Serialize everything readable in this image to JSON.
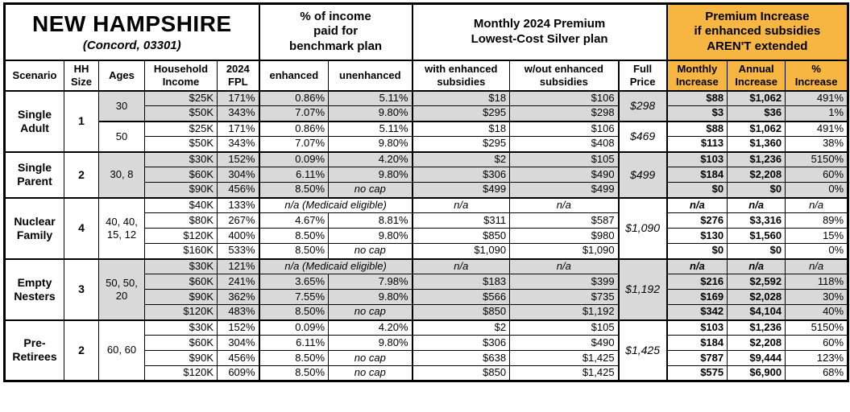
{
  "title": {
    "state": "NEW HAMPSHIRE",
    "subtitle": "(Concord, 03301)"
  },
  "group_headers": {
    "income_pct": "% of income\npaid for\nbenchmark plan",
    "premium": "Monthly 2024 Premium\nLowest-Cost Silver plan",
    "increase": "Premium Increase\nif enhanced subsidies\nAREN'T extended"
  },
  "columns": [
    "Scenario",
    "HH\nSize",
    "Ages",
    "Household\nIncome",
    "2024\nFPL",
    "enhanced",
    "unenhanced",
    "with enhanced\nsubsidies",
    "w/out enhanced\nsubsidies",
    "Full\nPrice",
    "Monthly\nIncrease",
    "Annual\nIncrease",
    "%\nIncrease"
  ],
  "colors": {
    "header_orange": "#F7B541",
    "row_shade": "#D9D9D9",
    "border": "#000000"
  },
  "groups": [
    {
      "scenario": "Single Adult",
      "hh_size": "1",
      "blocks": [
        {
          "ages": "30",
          "shaded": true,
          "full_price": "$298",
          "rows": [
            {
              "income": "$25K",
              "fpl": "171%",
              "enhanced": "0.86%",
              "unenhanced": "5.11%",
              "with_sub": "$18",
              "wout_sub": "$106",
              "monthly": "$88",
              "annual": "$1,062",
              "pct": "491%"
            },
            {
              "income": "$50K",
              "fpl": "343%",
              "enhanced": "7.07%",
              "unenhanced": "9.80%",
              "with_sub": "$295",
              "wout_sub": "$298",
              "monthly": "$3",
              "annual": "$36",
              "pct": "1%"
            }
          ]
        },
        {
          "ages": "50",
          "shaded": false,
          "full_price": "$469",
          "rows": [
            {
              "income": "$25K",
              "fpl": "171%",
              "enhanced": "0.86%",
              "unenhanced": "5.11%",
              "with_sub": "$18",
              "wout_sub": "$106",
              "monthly": "$88",
              "annual": "$1,062",
              "pct": "491%"
            },
            {
              "income": "$50K",
              "fpl": "343%",
              "enhanced": "7.07%",
              "unenhanced": "9.80%",
              "with_sub": "$295",
              "wout_sub": "$408",
              "monthly": "$113",
              "annual": "$1,360",
              "pct": "38%"
            }
          ]
        }
      ]
    },
    {
      "scenario": "Single Parent",
      "hh_size": "2",
      "blocks": [
        {
          "ages": "30, 8",
          "shaded": true,
          "full_price": "$499",
          "rows": [
            {
              "income": "$30K",
              "fpl": "152%",
              "enhanced": "0.09%",
              "unenhanced": "4.20%",
              "with_sub": "$2",
              "wout_sub": "$105",
              "monthly": "$103",
              "annual": "$1,236",
              "pct": "5150%"
            },
            {
              "income": "$60K",
              "fpl": "304%",
              "enhanced": "6.11%",
              "unenhanced": "9.80%",
              "with_sub": "$306",
              "wout_sub": "$490",
              "monthly": "$184",
              "annual": "$2,208",
              "pct": "60%"
            },
            {
              "income": "$90K",
              "fpl": "456%",
              "enhanced": "8.50%",
              "unenhanced": "no cap",
              "with_sub": "$499",
              "wout_sub": "$499",
              "monthly": "$0",
              "annual": "$0",
              "pct": "0%"
            }
          ]
        }
      ]
    },
    {
      "scenario": "Nuclear Family",
      "hh_size": "4",
      "blocks": [
        {
          "ages": "40, 40,\n15, 12",
          "shaded": false,
          "full_price": "$1,090",
          "rows": [
            {
              "income": "$40K",
              "fpl": "133%",
              "medicaid": "n/a (Medicaid eligible)",
              "with_sub": "n/a",
              "wout_sub": "n/a",
              "monthly": "n/a",
              "annual": "n/a",
              "pct": "n/a"
            },
            {
              "income": "$80K",
              "fpl": "267%",
              "enhanced": "4.67%",
              "unenhanced": "8.81%",
              "with_sub": "$311",
              "wout_sub": "$587",
              "monthly": "$276",
              "annual": "$3,316",
              "pct": "89%"
            },
            {
              "income": "$120K",
              "fpl": "400%",
              "enhanced": "8.50%",
              "unenhanced": "9.80%",
              "with_sub": "$850",
              "wout_sub": "$980",
              "monthly": "$130",
              "annual": "$1,560",
              "pct": "15%"
            },
            {
              "income": "$160K",
              "fpl": "533%",
              "enhanced": "8.50%",
              "unenhanced": "no cap",
              "with_sub": "$1,090",
              "wout_sub": "$1,090",
              "monthly": "$0",
              "annual": "$0",
              "pct": "0%"
            }
          ]
        }
      ]
    },
    {
      "scenario": "Empty Nesters",
      "hh_size": "3",
      "blocks": [
        {
          "ages": "50, 50,\n20",
          "shaded": true,
          "full_price": "$1,192",
          "rows": [
            {
              "income": "$30K",
              "fpl": "121%",
              "medicaid": "n/a (Medicaid eligible)",
              "with_sub": "n/a",
              "wout_sub": "n/a",
              "monthly": "n/a",
              "annual": "n/a",
              "pct": "n/a"
            },
            {
              "income": "$60K",
              "fpl": "241%",
              "enhanced": "3.65%",
              "unenhanced": "7.98%",
              "with_sub": "$183",
              "wout_sub": "$399",
              "monthly": "$216",
              "annual": "$2,592",
              "pct": "118%"
            },
            {
              "income": "$90K",
              "fpl": "362%",
              "enhanced": "7.55%",
              "unenhanced": "9.80%",
              "with_sub": "$566",
              "wout_sub": "$735",
              "monthly": "$169",
              "annual": "$2,028",
              "pct": "30%"
            },
            {
              "income": "$120K",
              "fpl": "483%",
              "enhanced": "8.50%",
              "unenhanced": "no cap",
              "with_sub": "$850",
              "wout_sub": "$1,192",
              "monthly": "$342",
              "annual": "$4,104",
              "pct": "40%"
            }
          ]
        }
      ]
    },
    {
      "scenario": "Pre-Retirees",
      "hh_size": "2",
      "blocks": [
        {
          "ages": "60, 60",
          "shaded": false,
          "full_price": "$1,425",
          "rows": [
            {
              "income": "$30K",
              "fpl": "152%",
              "enhanced": "0.09%",
              "unenhanced": "4.20%",
              "with_sub": "$2",
              "wout_sub": "$105",
              "monthly": "$103",
              "annual": "$1,236",
              "pct": "5150%"
            },
            {
              "income": "$60K",
              "fpl": "304%",
              "enhanced": "6.11%",
              "unenhanced": "9.80%",
              "with_sub": "$306",
              "wout_sub": "$490",
              "monthly": "$184",
              "annual": "$2,208",
              "pct": "60%"
            },
            {
              "income": "$90K",
              "fpl": "456%",
              "enhanced": "8.50%",
              "unenhanced": "no cap",
              "with_sub": "$638",
              "wout_sub": "$1,425",
              "monthly": "$787",
              "annual": "$9,444",
              "pct": "123%"
            },
            {
              "income": "$120K",
              "fpl": "609%",
              "enhanced": "8.50%",
              "unenhanced": "no cap",
              "with_sub": "$850",
              "wout_sub": "$1,425",
              "monthly": "$575",
              "annual": "$6,900",
              "pct": "68%"
            }
          ]
        }
      ]
    }
  ]
}
